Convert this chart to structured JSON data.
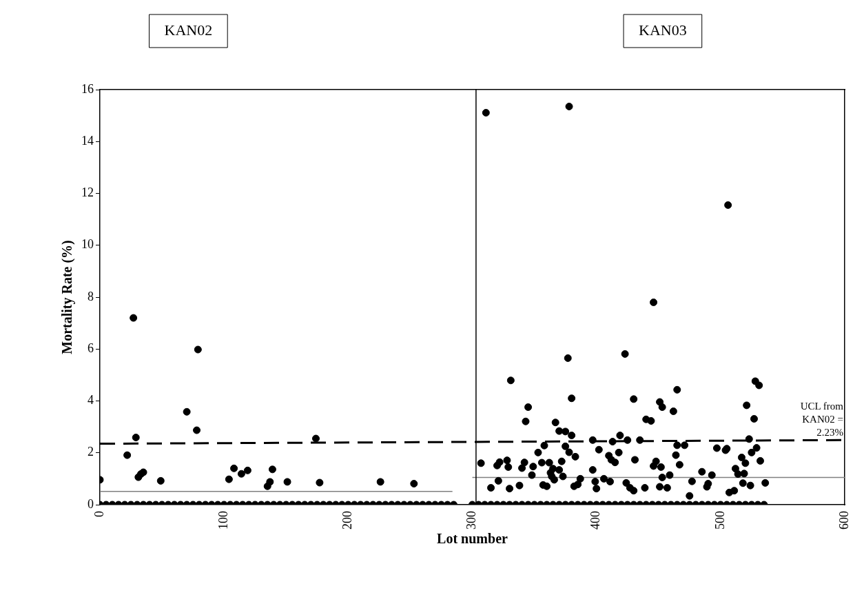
{
  "chart_data": {
    "type": "scatter",
    "xlabel": "Lot number",
    "ylabel": "Mortality Rate (%)",
    "xlim": [
      0,
      600
    ],
    "xticks": [
      0,
      100,
      200,
      300,
      400,
      500,
      600
    ],
    "ylim": [
      0,
      16
    ],
    "yticks": [
      0,
      2,
      4,
      6,
      8,
      10,
      12,
      14,
      16
    ],
    "grid": false,
    "legend": false,
    "marker": "circle",
    "series": [
      {
        "color": "#000000",
        "x": [
          0,
          27,
          79,
          70,
          78,
          29,
          174,
          22,
          31,
          33,
          35,
          49,
          104,
          108,
          114,
          119,
          135,
          137,
          139,
          151,
          177,
          226,
          253,
          0,
          5,
          10,
          15,
          20,
          25,
          30,
          35,
          40,
          45,
          50,
          55,
          60,
          65,
          70,
          75,
          80,
          85,
          90,
          95,
          100,
          105,
          110,
          115,
          120,
          125,
          130,
          135,
          140,
          145,
          150,
          155,
          160,
          165,
          170,
          175,
          180,
          185,
          190,
          195,
          200,
          205,
          210,
          215,
          220,
          225,
          230,
          235,
          240,
          245,
          250,
          255,
          260,
          265,
          270,
          275,
          280,
          285
        ],
        "values": [
          0.96,
          7.2,
          5.98,
          3.58,
          2.87,
          2.59,
          2.55,
          1.91,
          1.06,
          1.18,
          1.25,
          0.92,
          0.98,
          1.4,
          1.19,
          1.32,
          0.71,
          0.88,
          1.36,
          0.88,
          0.85,
          0.88,
          0.81,
          0,
          0,
          0,
          0,
          0,
          0,
          0,
          0,
          0,
          0,
          0,
          0,
          0,
          0,
          0,
          0,
          0,
          0,
          0,
          0,
          0,
          0,
          0,
          0,
          0,
          0,
          0,
          0,
          0,
          0,
          0,
          0,
          0,
          0,
          0,
          0,
          0,
          0,
          0,
          0,
          0,
          0,
          0,
          0,
          0,
          0,
          0,
          0,
          0,
          0,
          0,
          0,
          0,
          0,
          0,
          0,
          0,
          0
        ]
      },
      {
        "color": "#000000",
        "x": [
          311,
          378,
          506,
          446,
          377,
          423,
          331,
          465,
          528,
          531,
          380,
          345,
          343,
          430,
          451,
          453,
          440,
          444,
          367,
          370,
          375,
          380,
          397,
          419,
          413,
          425,
          435,
          358,
          375,
          353,
          402,
          378,
          383,
          418,
          410,
          412,
          415,
          431,
          307,
          320,
          322,
          328,
          329,
          340,
          342,
          349,
          356,
          362,
          372,
          365,
          370,
          348,
          363,
          364,
          366,
          373,
          397,
          446,
          448,
          452,
          453,
          321,
          315,
          330,
          338,
          357,
          360,
          382,
          385,
          387,
          399,
          400,
          406,
          411,
          424,
          427,
          430,
          439,
          451,
          521,
          527,
          462,
          523,
          465,
          471,
          529,
          497,
          504,
          505,
          525,
          464,
          467,
          517,
          520,
          532,
          512,
          514,
          519,
          485,
          493,
          459,
          477,
          490,
          489,
          457,
          518,
          524,
          536,
          475,
          507,
          511,
          300,
          305,
          310,
          315,
          320,
          325,
          330,
          335,
          340,
          345,
          350,
          355,
          360,
          365,
          370,
          375,
          380,
          385,
          390,
          395,
          400,
          405,
          410,
          415,
          420,
          425,
          430,
          435,
          440,
          445,
          450,
          455,
          460,
          465,
          470,
          475,
          480,
          485,
          490,
          495,
          500,
          505,
          510,
          515,
          520,
          525,
          530,
          535
        ],
        "values": [
          15.11,
          15.35,
          11.55,
          7.8,
          5.65,
          5.81,
          4.79,
          4.43,
          4.76,
          4.6,
          4.1,
          3.76,
          3.21,
          4.07,
          3.96,
          3.76,
          3.29,
          3.23,
          3.17,
          2.84,
          2.82,
          2.67,
          2.49,
          2.67,
          2.43,
          2.49,
          2.49,
          2.28,
          2.25,
          2.01,
          2.12,
          2.02,
          1.85,
          2.01,
          1.89,
          1.73,
          1.63,
          1.73,
          1.6,
          1.51,
          1.64,
          1.71,
          1.45,
          1.41,
          1.63,
          1.47,
          1.62,
          1.62,
          1.67,
          1.39,
          1.34,
          1.14,
          1.23,
          1.09,
          0.96,
          1.09,
          1.34,
          1.49,
          1.67,
          1.45,
          1.05,
          0.92,
          0.65,
          0.62,
          0.74,
          0.76,
          0.71,
          0.71,
          0.78,
          1.0,
          0.89,
          0.62,
          1.0,
          0.89,
          0.84,
          0.65,
          0.54,
          0.65,
          0.69,
          3.83,
          3.31,
          3.6,
          2.53,
          2.29,
          2.29,
          2.19,
          2.18,
          2.1,
          2.16,
          2.01,
          1.91,
          1.54,
          1.82,
          1.6,
          1.69,
          1.39,
          1.18,
          1.2,
          1.27,
          1.14,
          1.14,
          0.9,
          0.81,
          0.69,
          0.65,
          0.83,
          0.74,
          0.84,
          0.34,
          0.47,
          0.54,
          0,
          0,
          0,
          0,
          0,
          0,
          0,
          0,
          0,
          0,
          0,
          0,
          0,
          0,
          0,
          0,
          0,
          0,
          0,
          0,
          0,
          0,
          0,
          0,
          0,
          0,
          0,
          0,
          0,
          0,
          0,
          0,
          0,
          0,
          0,
          0,
          0,
          0,
          0,
          0,
          0,
          0,
          0,
          0,
          0,
          0,
          0,
          0
        ]
      },
      {
        "type": "line",
        "marker": "none",
        "color": "#808080",
        "x": [
          0,
          284
        ],
        "values": [
          0.51,
          0.51
        ]
      },
      {
        "type": "line",
        "marker": "none",
        "color": "#808080",
        "x": [
          300,
          600
        ],
        "values": [
          1.05,
          1.05
        ]
      },
      {
        "type": "line",
        "marker": "none",
        "color": "#000000",
        "line_style": "dashed",
        "x": [
          0,
          600
        ],
        "values": [
          2.35,
          2.49
        ]
      }
    ],
    "ref_lines": [
      {
        "axis": "x",
        "value": 303,
        "color": "#000000"
      }
    ],
    "annotations": [
      "KAN02",
      "KAN03",
      {
        "text": "UCL from KAN02 = 2.23%",
        "x": 600,
        "y": 2.49
      }
    ]
  }
}
